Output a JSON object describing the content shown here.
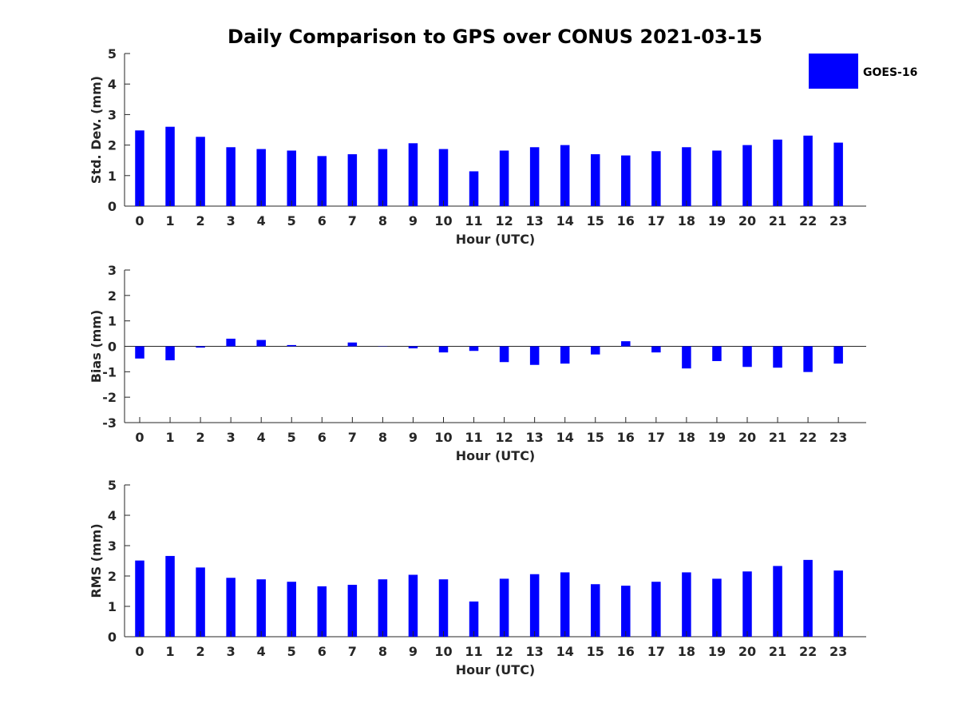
{
  "title": "Daily Comparison to GPS over CONUS 2021-03-15",
  "bar_color": "#0000ff",
  "legend": {
    "label": "GOES-16",
    "position": "top-right"
  },
  "chart_data": [
    {
      "type": "bar",
      "xlabel": "Hour (UTC)",
      "ylabel": "Std. Dev. (mm)",
      "ylim": [
        0,
        5
      ],
      "yticks": [
        0,
        1,
        2,
        3,
        4,
        5
      ],
      "categories": [
        0,
        1,
        2,
        3,
        4,
        5,
        6,
        7,
        8,
        9,
        10,
        11,
        12,
        13,
        14,
        15,
        16,
        17,
        18,
        19,
        20,
        21,
        22,
        23
      ],
      "series": [
        {
          "name": "GOES-16",
          "values": [
            2.48,
            2.6,
            2.27,
            1.93,
            1.87,
            1.82,
            1.64,
            1.7,
            1.87,
            2.06,
            1.87,
            1.14,
            1.82,
            1.93,
            2.0,
            1.7,
            1.66,
            1.8,
            1.93,
            1.82,
            2.0,
            2.18,
            2.31,
            2.08
          ]
        }
      ]
    },
    {
      "type": "bar",
      "xlabel": "Hour (UTC)",
      "ylabel": "Bias (mm)",
      "ylim": [
        -3,
        3
      ],
      "yticks": [
        -3,
        -2,
        -1,
        0,
        1,
        2,
        3
      ],
      "categories": [
        0,
        1,
        2,
        3,
        4,
        5,
        6,
        7,
        8,
        9,
        10,
        11,
        12,
        13,
        14,
        15,
        16,
        17,
        18,
        19,
        20,
        21,
        22,
        23
      ],
      "series": [
        {
          "name": "GOES-16",
          "values": [
            -0.48,
            -0.55,
            -0.05,
            0.3,
            0.25,
            0.05,
            0.0,
            0.15,
            -0.01,
            -0.08,
            -0.24,
            -0.18,
            -0.62,
            -0.73,
            -0.68,
            -0.32,
            0.2,
            -0.24,
            -0.87,
            -0.58,
            -0.81,
            -0.84,
            -1.01,
            -0.68
          ]
        }
      ]
    },
    {
      "type": "bar",
      "xlabel": "Hour (UTC)",
      "ylabel": "RMS (mm)",
      "ylim": [
        0,
        5
      ],
      "yticks": [
        0,
        1,
        2,
        3,
        4,
        5
      ],
      "categories": [
        0,
        1,
        2,
        3,
        4,
        5,
        6,
        7,
        8,
        9,
        10,
        11,
        12,
        13,
        14,
        15,
        16,
        17,
        18,
        19,
        20,
        21,
        22,
        23
      ],
      "series": [
        {
          "name": "GOES-16",
          "values": [
            2.51,
            2.66,
            2.28,
            1.94,
            1.89,
            1.81,
            1.66,
            1.71,
            1.89,
            2.04,
            1.89,
            1.16,
            1.91,
            2.06,
            2.12,
            1.73,
            1.68,
            1.81,
            2.12,
            1.91,
            2.15,
            2.33,
            2.53,
            2.18
          ]
        }
      ]
    }
  ]
}
